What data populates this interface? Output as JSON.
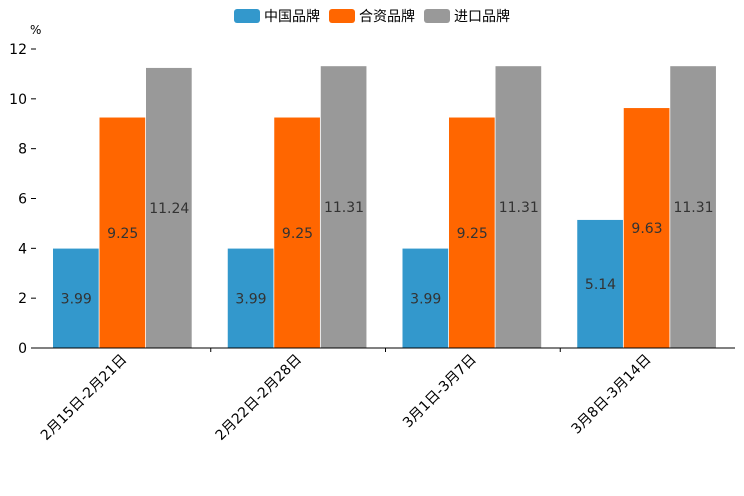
{
  "chart_data": {
    "type": "bar",
    "ylabel": "%",
    "ylim": [
      0,
      12
    ],
    "yticks": [
      0,
      2,
      4,
      6,
      8,
      10,
      12
    ],
    "legend_position": "top-center",
    "categories": [
      "2月15日-2月21日",
      "2月22日-2月28日",
      "3月1日-3月7日",
      "3月8日-3月14日"
    ],
    "series": [
      {
        "name": "中国品牌",
        "color": "#3398cc",
        "values": [
          3.99,
          3.99,
          3.99,
          5.14
        ],
        "labels": [
          "3.99",
          "3.99",
          "3.99",
          "5.14"
        ]
      },
      {
        "name": "合资品牌",
        "color": "#ff6600",
        "values": [
          9.25,
          9.25,
          9.25,
          9.63
        ],
        "labels": [
          "9.25",
          "9.25",
          "9.25",
          "9.63"
        ]
      },
      {
        "name": "进口品牌",
        "color": "#999999",
        "values": [
          11.24,
          11.31,
          11.31,
          11.31
        ],
        "labels": [
          "11.24",
          "11.31",
          "11.31",
          "11.31"
        ]
      }
    ]
  }
}
